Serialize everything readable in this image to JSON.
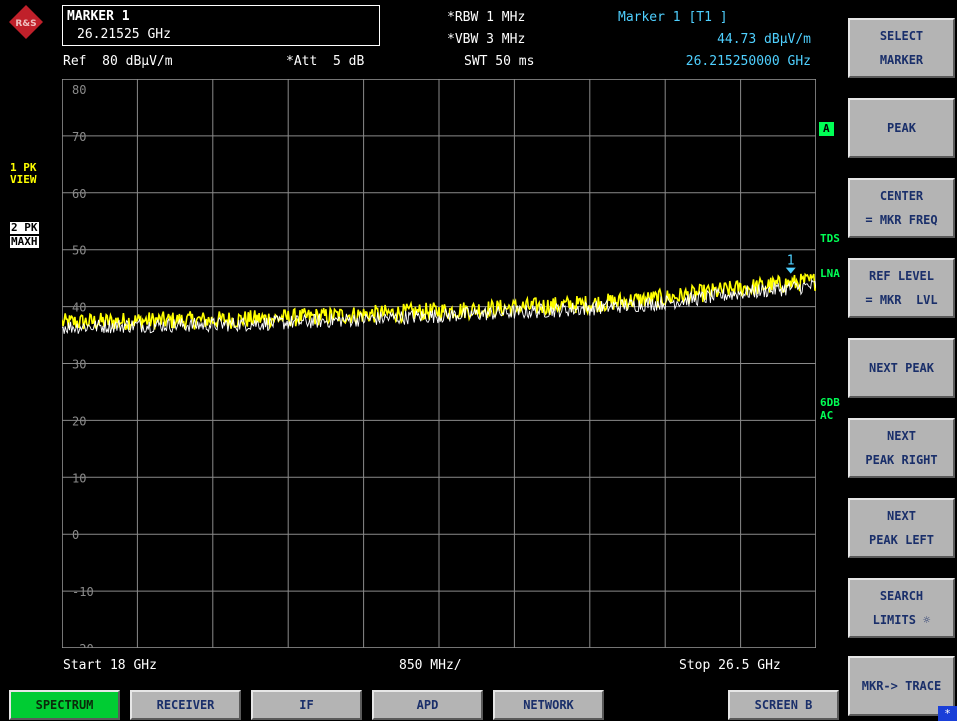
{
  "header": {
    "marker_box": {
      "title": "MARKER 1",
      "freq": "26.21525 GHz"
    },
    "ref": "Ref  80 dBμV/m",
    "att": "*Att  5 dB",
    "rbw": "*RBW 1 MHz",
    "vbw": "*VBW 3 MHz",
    "swt": "SWT 50 ms",
    "marker_readout": {
      "title": "Marker 1 [T1 ]",
      "level": "44.73 dBμV/m",
      "freq": "26.215250000 GHz"
    }
  },
  "left_labels": {
    "trace1": [
      "1 PK",
      "VIEW"
    ],
    "trace2": [
      "2 PK",
      "MAXH"
    ]
  },
  "right_labels": {
    "a_badge": "A",
    "tds": "TDS",
    "lna": "LNA",
    "sixdb": "6DB",
    "ac": "AC"
  },
  "chart_data": {
    "type": "line",
    "title": "",
    "xlabel": "",
    "ylabel": "",
    "xlim": [
      18,
      26.5
    ],
    "ylim": [
      -20,
      80
    ],
    "x_unit": "GHz",
    "y_unit": "dBμV/m",
    "ytick_labels": [
      "80",
      "70",
      "60",
      "50",
      "40",
      "30",
      "20",
      "10",
      "0",
      "-10",
      "-20"
    ],
    "grid": true,
    "series": [
      {
        "color": "#ffff00",
        "x": [
          18,
          18.85,
          19.7,
          20.55,
          21.4,
          22.25,
          23.1,
          23.95,
          24.8,
          25.65,
          26.5
        ],
        "values": [
          37.2,
          37.5,
          37.6,
          38.0,
          38.6,
          39.2,
          39.8,
          40.5,
          41.5,
          43.2,
          44.5
        ]
      },
      {
        "color": "#ffffff",
        "x": [
          18,
          18.85,
          19.7,
          20.55,
          21.4,
          22.25,
          23.1,
          23.95,
          24.8,
          25.65,
          26.5
        ],
        "values": [
          36.4,
          36.7,
          36.8,
          37.2,
          37.8,
          38.4,
          39.0,
          39.7,
          40.7,
          42.4,
          43.7
        ]
      }
    ],
    "marker": {
      "label": "1",
      "x": 26.21525,
      "y": 44.73,
      "color": "#4fd0ff"
    },
    "start_label": "Start 18 GHz",
    "span_label": "850 MHz/",
    "stop_label": "Stop 26.5 GHz"
  },
  "softkeys": [
    [
      "SELECT",
      "MARKER"
    ],
    [
      "PEAK"
    ],
    [
      "CENTER",
      "= MKR FREQ"
    ],
    [
      "REF LEVEL",
      "= MKR  LVL"
    ],
    [
      "NEXT PEAK"
    ],
    [
      "NEXT",
      "PEAK RIGHT"
    ],
    [
      "NEXT",
      "PEAK LEFT"
    ],
    [
      "SEARCH",
      "LIMITS ☼"
    ],
    [
      "MKR-> TRACE"
    ]
  ],
  "tabs": [
    "SPECTRUM",
    "RECEIVER",
    "IF",
    "APD",
    "NETWORK",
    "SCREEN B"
  ],
  "active_tab": "SPECTRUM",
  "corner_symbol": "*",
  "colors": {
    "background": "#000000",
    "trace_max": "#ffff00",
    "trace_view": "#ffffff",
    "marker": "#4fd0ff",
    "active_tab": "#00cc33",
    "softkey": "#b4b4b4"
  }
}
